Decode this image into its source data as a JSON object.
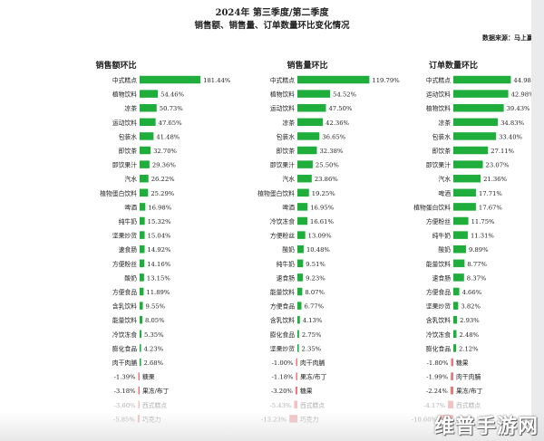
{
  "header": {
    "title_line1": "2024年 第三季度/第二季度",
    "title_line2": "销售额、销售量、订单数量环比变化情况",
    "source": "数据来源：马上赢"
  },
  "colors": {
    "positive": "#1fae3c",
    "negative": "#e8787a",
    "text": "#222222",
    "faded": "#b0b0b0"
  },
  "watermark": "维普手游网",
  "chart_data": [
    {
      "type": "bar",
      "title": "销售额环比",
      "unit": "%",
      "categories": [
        "中式糕点",
        "植物饮料",
        "凉茶",
        "运动饮料",
        "包装水",
        "即饮茶",
        "即饮果汁",
        "汽水",
        "植物蛋白饮料",
        "啤酒",
        "纯牛奶",
        "坚果炒货",
        "速食肠",
        "方便粉丝",
        "酸奶",
        "方便食品",
        "含乳饮料",
        "能量饮料",
        "冷饮冻食",
        "膨化食品",
        "肉干肉脯",
        "糖果",
        "果冻/布丁",
        "西式糕点",
        "巧克力"
      ],
      "values": [
        181.44,
        54.46,
        50.73,
        47.65,
        41.48,
        32.7,
        29.36,
        26.22,
        25.29,
        16.98,
        15.32,
        15.04,
        14.92,
        14.16,
        13.15,
        11.89,
        9.55,
        8.05,
        5.35,
        4.23,
        2.68,
        -1.39,
        -3.18,
        -3.6,
        -5.85
      ],
      "faded": [
        false,
        false,
        false,
        false,
        false,
        false,
        false,
        false,
        false,
        false,
        false,
        false,
        false,
        false,
        false,
        false,
        false,
        false,
        false,
        false,
        false,
        false,
        false,
        true,
        true
      ]
    },
    {
      "type": "bar",
      "title": "销售量环比",
      "unit": "%",
      "categories": [
        "中式糕点",
        "植物饮料",
        "运动饮料",
        "凉茶",
        "包装水",
        "即饮茶",
        "即饮果汁",
        "汽水",
        "植物蛋白饮料",
        "啤酒",
        "冷饮冻食",
        "方便粉丝",
        "酸奶",
        "纯牛奶",
        "速食肠",
        "能量饮料",
        "方便食品",
        "含乳饮料",
        "膨化食品",
        "坚果炒货",
        "肉干肉脯",
        "果冻/布丁",
        "糖果",
        "西式糕点",
        "巧克力"
      ],
      "values": [
        119.79,
        54.52,
        47.5,
        42.36,
        36.65,
        32.38,
        25.5,
        23.86,
        19.25,
        16.95,
        16.61,
        13.09,
        10.48,
        9.51,
        9.23,
        8.07,
        6.77,
        4.13,
        2.75,
        2.35,
        -1.0,
        -1.18,
        -3.2,
        -5.43,
        -13.23
      ],
      "faded": [
        false,
        false,
        false,
        false,
        false,
        false,
        false,
        false,
        false,
        false,
        false,
        false,
        false,
        false,
        false,
        false,
        false,
        false,
        false,
        false,
        false,
        false,
        false,
        true,
        true
      ]
    },
    {
      "type": "bar",
      "title": "订单数量环比",
      "unit": "%",
      "categories": [
        "中式糕点",
        "运动饮料",
        "植物饮料",
        "凉茶",
        "包装水",
        "即饮茶",
        "即饮果汁",
        "汽水",
        "啤酒",
        "植物蛋白饮料",
        "方便粉丝",
        "纯牛奶",
        "酸奶",
        "能量饮料",
        "速食肠",
        "方便食品",
        "坚果炒货",
        "含乳饮料",
        "冷饮冻食",
        "膨化食品",
        "糖果",
        "肉干肉脯",
        "果冻/布丁",
        "西式糕点",
        "巧克力"
      ],
      "values": [
        44.98,
        42.98,
        39.43,
        34.83,
        33.4,
        27.11,
        23.07,
        21.36,
        17.71,
        17.67,
        11.75,
        11.31,
        9.89,
        8.77,
        8.37,
        4.66,
        3.82,
        2.93,
        2.48,
        2.12,
        -1.8,
        -1.99,
        -2.24,
        -4.17,
        -10.6
      ],
      "faded": [
        false,
        false,
        false,
        false,
        false,
        false,
        false,
        false,
        false,
        false,
        false,
        false,
        false,
        false,
        false,
        false,
        false,
        false,
        false,
        false,
        false,
        false,
        false,
        true,
        true
      ]
    }
  ]
}
